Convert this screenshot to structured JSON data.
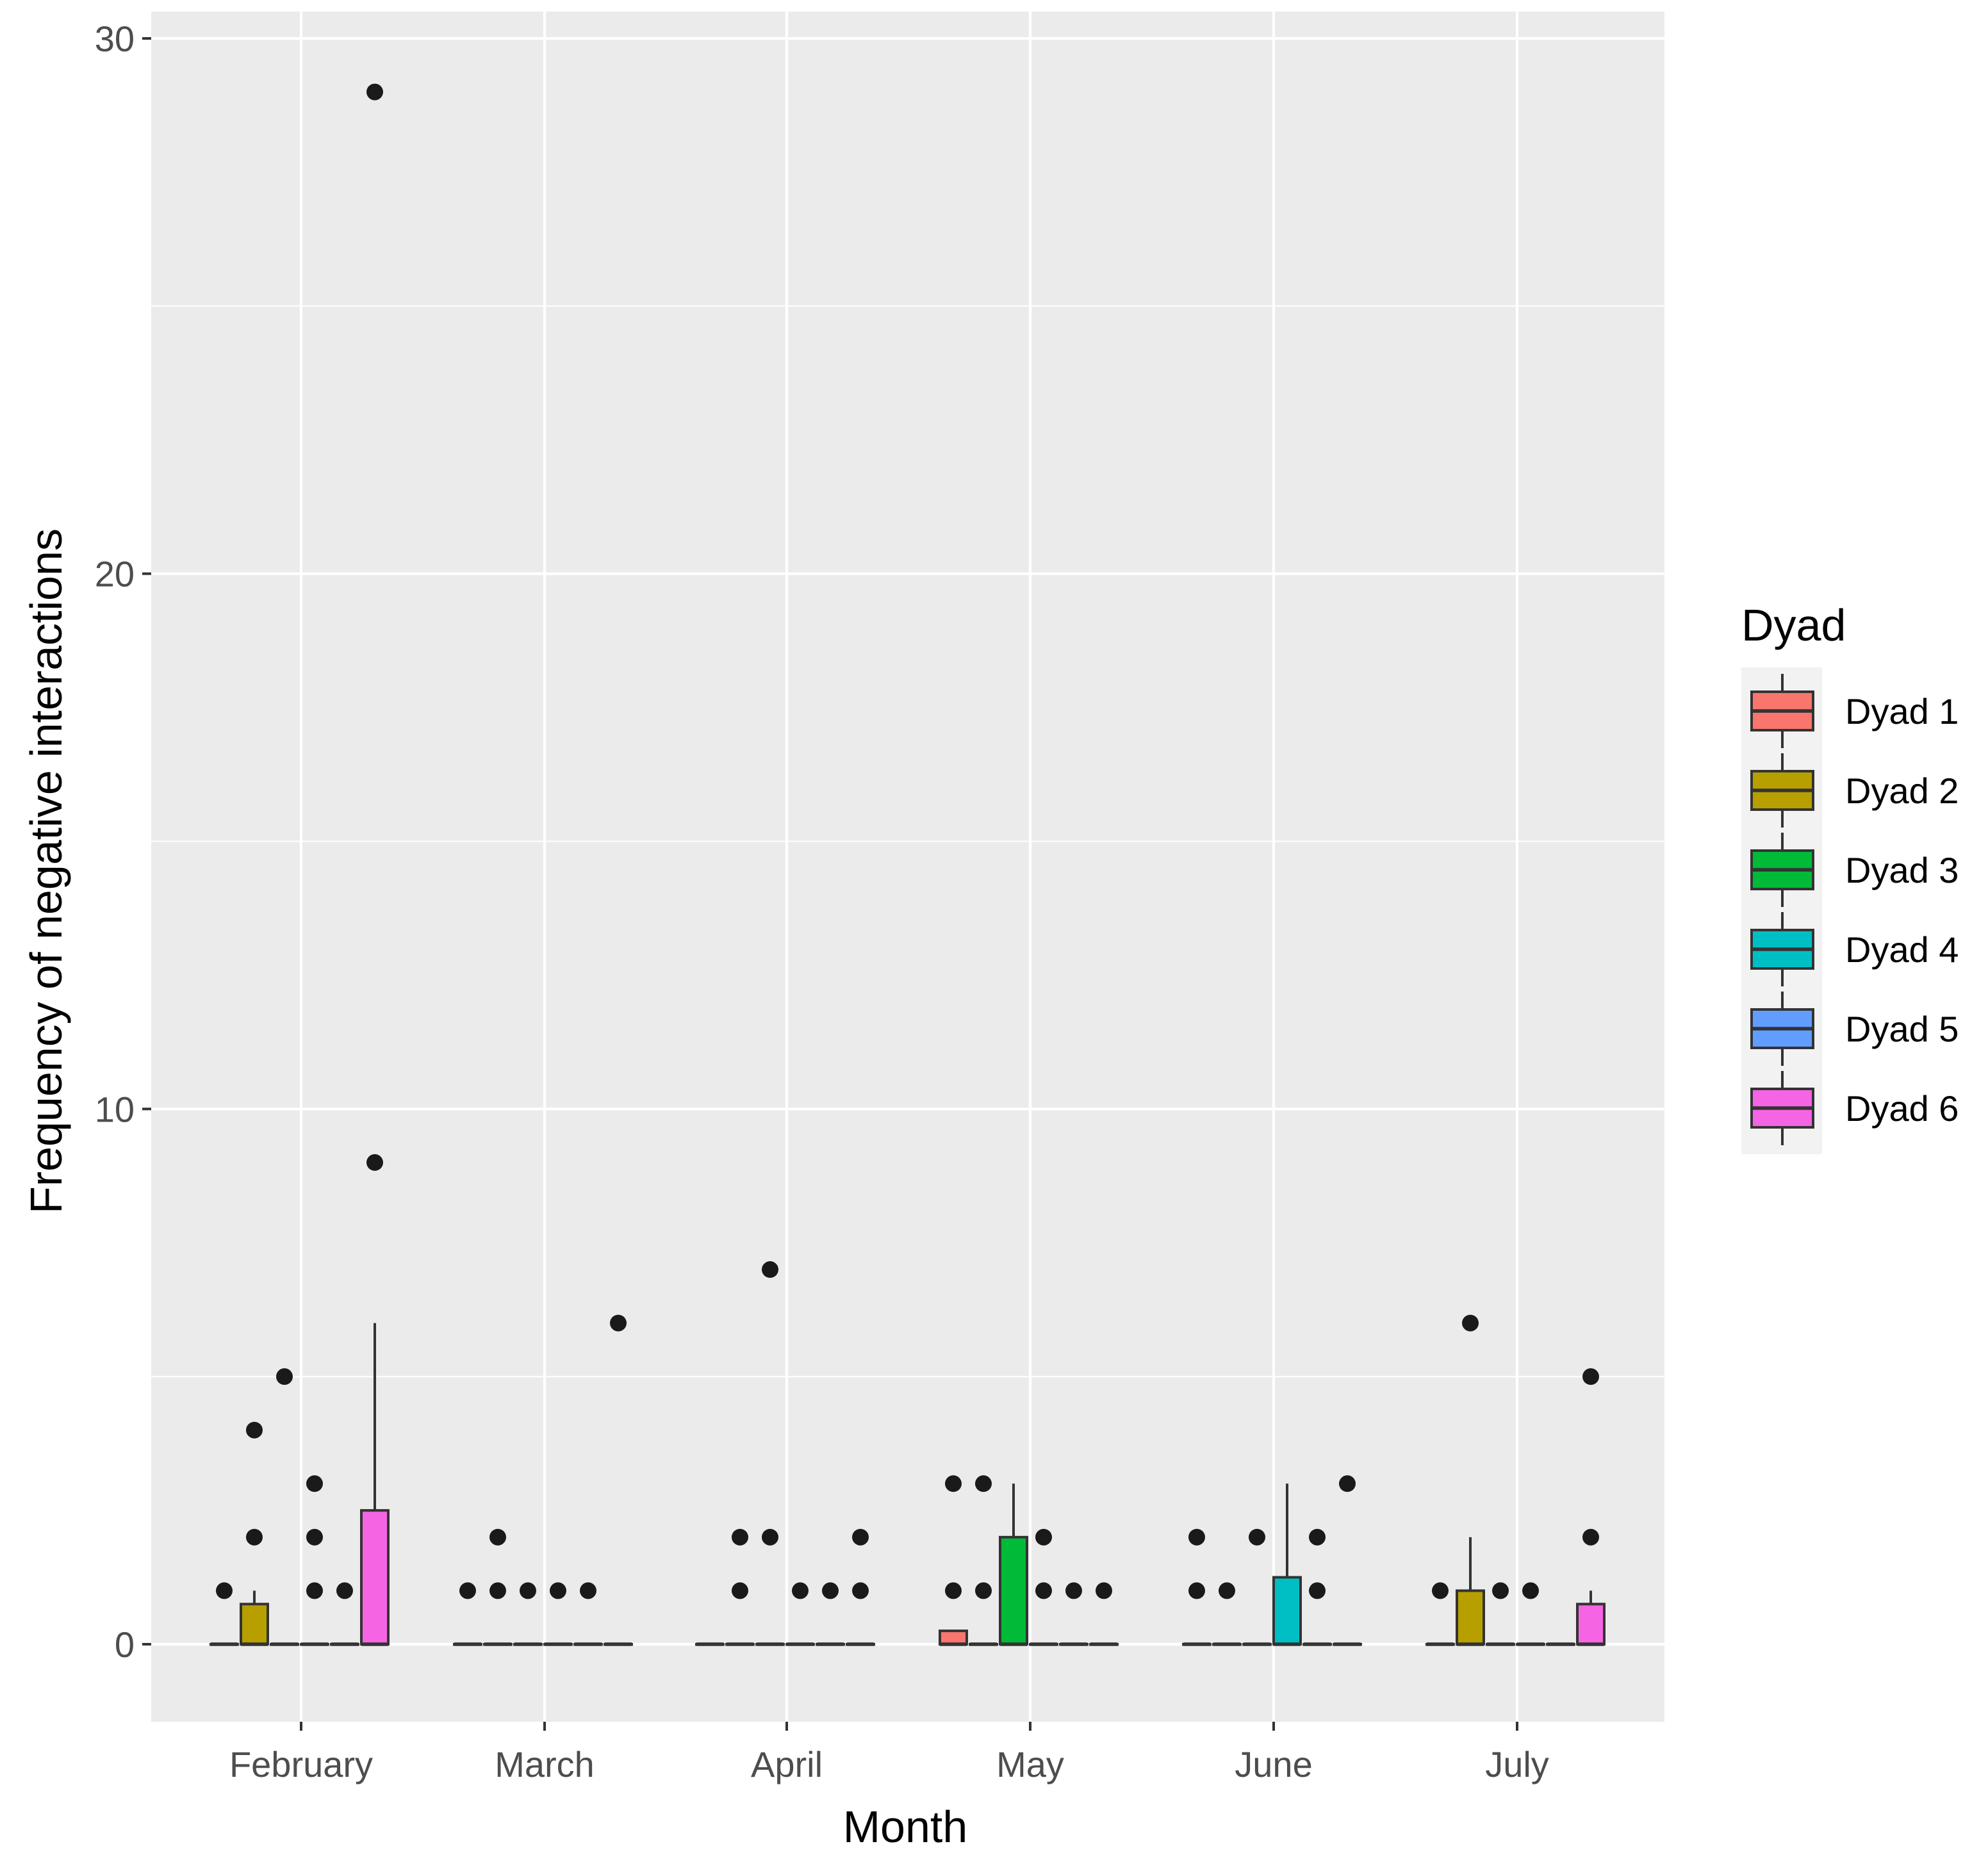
{
  "chart_data": {
    "type": "boxplot",
    "title": "",
    "xlabel": "Month",
    "ylabel": "Frequency of negative interactions",
    "ylim": [
      -1.2,
      30.5
    ],
    "yticks": [
      0,
      10,
      20,
      30
    ],
    "categories": [
      "February",
      "March",
      "April",
      "May",
      "June",
      "July"
    ],
    "legend": {
      "title": "Dyad",
      "position": "right",
      "entries": [
        "Dyad 1",
        "Dyad 2",
        "Dyad 3",
        "Dyad 4",
        "Dyad 5",
        "Dyad 6"
      ]
    },
    "colors": {
      "Dyad 1": "#F8766D",
      "Dyad 2": "#B79F00",
      "Dyad 3": "#00BA38",
      "Dyad 4": "#00BFC4",
      "Dyad 5": "#619CFF",
      "Dyad 6": "#F564E3"
    },
    "series": [
      {
        "name": "Dyad 1",
        "boxes": [
          {
            "q1": 0,
            "median": 0,
            "q3": 0,
            "whisker_low": 0,
            "whisker_high": 0,
            "outliers": [
              1
            ]
          },
          {
            "q1": 0,
            "median": 0,
            "q3": 0,
            "whisker_low": 0,
            "whisker_high": 0,
            "outliers": [
              1
            ]
          },
          {
            "q1": 0,
            "median": 0,
            "q3": 0,
            "whisker_low": 0,
            "whisker_high": 0,
            "outliers": []
          },
          {
            "q1": 0,
            "median": 0,
            "q3": 0.25,
            "whisker_low": 0,
            "whisker_high": 0.25,
            "outliers": [
              1,
              3
            ]
          },
          {
            "q1": 0,
            "median": 0,
            "q3": 0,
            "whisker_low": 0,
            "whisker_high": 0,
            "outliers": [
              1,
              2
            ]
          },
          {
            "q1": 0,
            "median": 0,
            "q3": 0,
            "whisker_low": 0,
            "whisker_high": 0,
            "outliers": [
              1
            ]
          }
        ]
      },
      {
        "name": "Dyad 2",
        "boxes": [
          {
            "q1": 0,
            "median": 0,
            "q3": 0.75,
            "whisker_low": 0,
            "whisker_high": 1,
            "outliers": [
              2,
              4
            ]
          },
          {
            "q1": 0,
            "median": 0,
            "q3": 0,
            "whisker_low": 0,
            "whisker_high": 0,
            "outliers": [
              1,
              2
            ]
          },
          {
            "q1": 0,
            "median": 0,
            "q3": 0,
            "whisker_low": 0,
            "whisker_high": 0,
            "outliers": [
              1,
              2
            ]
          },
          {
            "q1": 0,
            "median": 0,
            "q3": 0,
            "whisker_low": 0,
            "whisker_high": 0,
            "outliers": [
              1,
              3
            ]
          },
          {
            "q1": 0,
            "median": 0,
            "q3": 0,
            "whisker_low": 0,
            "whisker_high": 0,
            "outliers": [
              1
            ]
          },
          {
            "q1": 0,
            "median": 0,
            "q3": 1,
            "whisker_low": 0,
            "whisker_high": 2,
            "outliers": [
              6
            ]
          }
        ]
      },
      {
        "name": "Dyad 3",
        "boxes": [
          {
            "q1": 0,
            "median": 0,
            "q3": 0,
            "whisker_low": 0,
            "whisker_high": 0,
            "outliers": [
              5
            ]
          },
          {
            "q1": 0,
            "median": 0,
            "q3": 0,
            "whisker_low": 0,
            "whisker_high": 0,
            "outliers": [
              1
            ]
          },
          {
            "q1": 0,
            "median": 0,
            "q3": 0,
            "whisker_low": 0,
            "whisker_high": 0,
            "outliers": [
              2,
              7
            ]
          },
          {
            "q1": 0,
            "median": 0,
            "q3": 2,
            "whisker_low": 0,
            "whisker_high": 3,
            "outliers": []
          },
          {
            "q1": 0,
            "median": 0,
            "q3": 0,
            "whisker_low": 0,
            "whisker_high": 0,
            "outliers": [
              2
            ]
          },
          {
            "q1": 0,
            "median": 0,
            "q3": 0,
            "whisker_low": 0,
            "whisker_high": 0,
            "outliers": [
              1
            ]
          }
        ]
      },
      {
        "name": "Dyad 4",
        "boxes": [
          {
            "q1": 0,
            "median": 0,
            "q3": 0,
            "whisker_low": 0,
            "whisker_high": 0,
            "outliers": [
              1,
              2,
              3
            ]
          },
          {
            "q1": 0,
            "median": 0,
            "q3": 0,
            "whisker_low": 0,
            "whisker_high": 0,
            "outliers": [
              1
            ]
          },
          {
            "q1": 0,
            "median": 0,
            "q3": 0,
            "whisker_low": 0,
            "whisker_high": 0,
            "outliers": [
              1
            ]
          },
          {
            "q1": 0,
            "median": 0,
            "q3": 0,
            "whisker_low": 0,
            "whisker_high": 0,
            "outliers": [
              1,
              2
            ]
          },
          {
            "q1": 0,
            "median": 0,
            "q3": 1.25,
            "whisker_low": 0,
            "whisker_high": 3,
            "outliers": []
          },
          {
            "q1": 0,
            "median": 0,
            "q3": 0,
            "whisker_low": 0,
            "whisker_high": 0,
            "outliers": [
              1
            ]
          }
        ]
      },
      {
        "name": "Dyad 5",
        "boxes": [
          {
            "q1": 0,
            "median": 0,
            "q3": 0,
            "whisker_low": 0,
            "whisker_high": 0,
            "outliers": [
              1
            ]
          },
          {
            "q1": 0,
            "median": 0,
            "q3": 0,
            "whisker_low": 0,
            "whisker_high": 0,
            "outliers": [
              1
            ]
          },
          {
            "q1": 0,
            "median": 0,
            "q3": 0,
            "whisker_low": 0,
            "whisker_high": 0,
            "outliers": [
              1
            ]
          },
          {
            "q1": 0,
            "median": 0,
            "q3": 0,
            "whisker_low": 0,
            "whisker_high": 0,
            "outliers": [
              1
            ]
          },
          {
            "q1": 0,
            "median": 0,
            "q3": 0,
            "whisker_low": 0,
            "whisker_high": 0,
            "outliers": [
              1,
              2
            ]
          },
          {
            "q1": 0,
            "median": 0,
            "q3": 0,
            "whisker_low": 0,
            "whisker_high": 0,
            "outliers": []
          }
        ]
      },
      {
        "name": "Dyad 6",
        "boxes": [
          {
            "q1": 0,
            "median": 0,
            "q3": 2.5,
            "whisker_low": 0,
            "whisker_high": 6,
            "outliers": [
              9,
              29
            ]
          },
          {
            "q1": 0,
            "median": 0,
            "q3": 0,
            "whisker_low": 0,
            "whisker_high": 0,
            "outliers": [
              6
            ]
          },
          {
            "q1": 0,
            "median": 0,
            "q3": 0,
            "whisker_low": 0,
            "whisker_high": 0,
            "outliers": [
              1,
              2
            ]
          },
          {
            "q1": 0,
            "median": 0,
            "q3": 0,
            "whisker_low": 0,
            "whisker_high": 0,
            "outliers": [
              1
            ]
          },
          {
            "q1": 0,
            "median": 0,
            "q3": 0,
            "whisker_low": 0,
            "whisker_high": 0,
            "outliers": [
              3
            ]
          },
          {
            "q1": 0,
            "median": 0,
            "q3": 0.75,
            "whisker_low": 0,
            "whisker_high": 1,
            "outliers": [
              2,
              5
            ]
          }
        ]
      }
    ]
  }
}
